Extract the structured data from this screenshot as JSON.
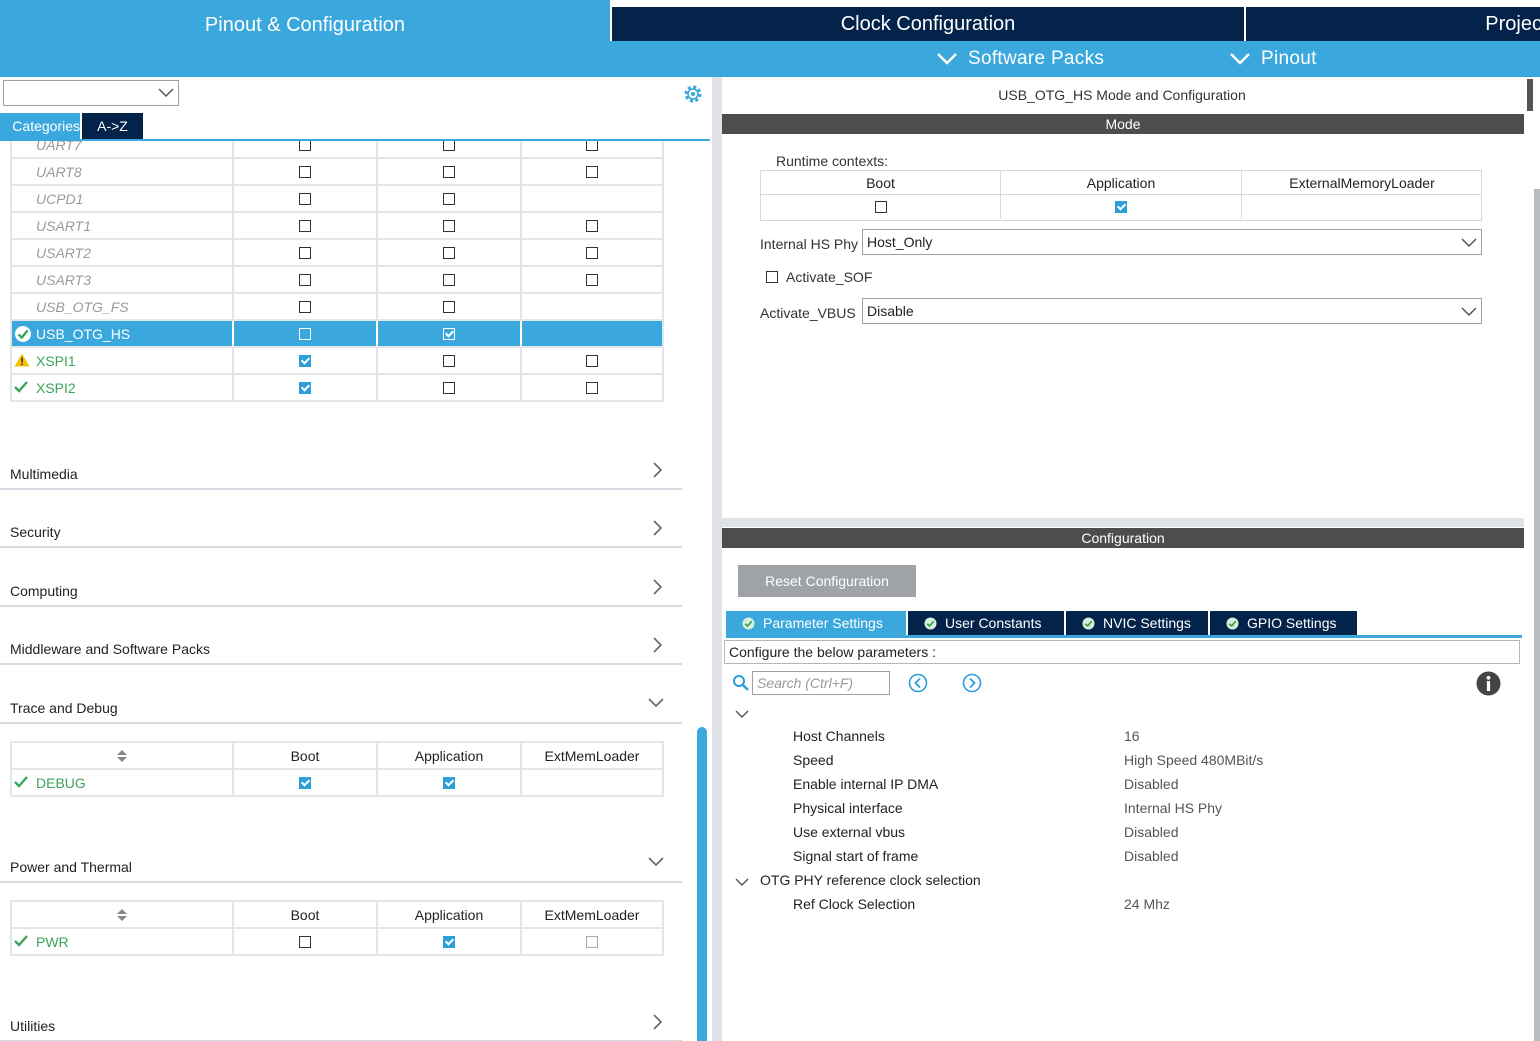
{
  "top_tabs": {
    "pinout": "Pinout & Configuration",
    "clock": "Clock Configuration",
    "project": "Projec"
  },
  "subbar": {
    "software_packs": "Software Packs",
    "pinout": "Pinout"
  },
  "left": {
    "categories_tab": "Categories",
    "az_tab": "A->Z",
    "peripherals": [
      {
        "name": "UART7",
        "status": "none",
        "style": "disabled",
        "boot": false,
        "app": false,
        "ext": false,
        "ext_shown": true
      },
      {
        "name": "UART8",
        "status": "none",
        "style": "disabled",
        "boot": false,
        "app": false,
        "ext": false,
        "ext_shown": true
      },
      {
        "name": "UCPD1",
        "status": "none",
        "style": "disabled",
        "boot": false,
        "app": false,
        "ext": false,
        "ext_shown": false
      },
      {
        "name": "USART1",
        "status": "none",
        "style": "disabled",
        "boot": false,
        "app": false,
        "ext": false,
        "ext_shown": true
      },
      {
        "name": "USART2",
        "status": "none",
        "style": "disabled",
        "boot": false,
        "app": false,
        "ext": false,
        "ext_shown": true
      },
      {
        "name": "USART3",
        "status": "none",
        "style": "disabled",
        "boot": false,
        "app": false,
        "ext": false,
        "ext_shown": true
      },
      {
        "name": "USB_OTG_FS",
        "status": "none",
        "style": "disabled",
        "boot": false,
        "app": false,
        "ext": false,
        "ext_shown": false
      },
      {
        "name": "USB_OTG_HS",
        "status": "ok-circle",
        "style": "selected",
        "boot": false,
        "app": true,
        "ext": false,
        "ext_shown": false
      },
      {
        "name": "XSPI1",
        "status": "warning",
        "style": "ok",
        "boot": true,
        "app": false,
        "ext": false,
        "ext_shown": true
      },
      {
        "name": "XSPI2",
        "status": "ok",
        "style": "ok",
        "boot": true,
        "app": false,
        "ext": false,
        "ext_shown": true
      }
    ],
    "categories": {
      "multimedia": "Multimedia",
      "security": "Security",
      "computing": "Computing",
      "middleware": "Middleware and Software Packs",
      "trace": "Trace and Debug",
      "power": "Power and Thermal",
      "utilities": "Utilities"
    },
    "table_headers": {
      "boot": "Boot",
      "application": "Application",
      "extmem": "ExtMemLoader"
    },
    "debug_row": {
      "name": "DEBUG",
      "boot": true,
      "app": true
    },
    "pwr_row": {
      "name": "PWR",
      "boot": false,
      "app": true
    }
  },
  "right": {
    "title": "USB_OTG_HS Mode and Configuration",
    "mode_bar": "Mode",
    "runtime_label": "Runtime contexts:",
    "runtime_headers": [
      "Boot",
      "Application",
      "ExternalMemoryLoader"
    ],
    "runtime_values": {
      "boot": false,
      "application": true
    },
    "internal_hs_phy_label": "Internal HS Phy",
    "internal_hs_phy_value": "Host_Only",
    "activate_sof_label": "Activate_SOF",
    "activate_sof_checked": false,
    "activate_vbus_label": "Activate_VBUS",
    "activate_vbus_value": "Disable",
    "config_bar": "Configuration",
    "reset_button": "Reset Configuration",
    "tabs": [
      "Parameter Settings",
      "User Constants",
      "NVIC Settings",
      "GPIO Settings"
    ],
    "hint": "Configure the below parameters :",
    "search_placeholder": "Search (Ctrl+F)",
    "params": [
      {
        "name": "Host Channels",
        "value": "16"
      },
      {
        "name": "Speed",
        "value": "High Speed 480MBit/s"
      },
      {
        "name": "Enable internal IP DMA",
        "value": "Disabled"
      },
      {
        "name": "Physical interface",
        "value": "Internal HS Phy"
      },
      {
        "name": "Use external vbus",
        "value": "Disabled"
      },
      {
        "name": "Signal start of frame",
        "value": "Disabled"
      }
    ],
    "group2_name": "OTG PHY reference clock selection",
    "group2_params": [
      {
        "name": "Ref Clock Selection",
        "value": "24 Mhz"
      }
    ]
  },
  "colors": {
    "accent_blue": "#3aa8dd",
    "navy": "#03234b",
    "ok_green": "#3ca45a",
    "dark_bar": "#4d4d4d"
  }
}
